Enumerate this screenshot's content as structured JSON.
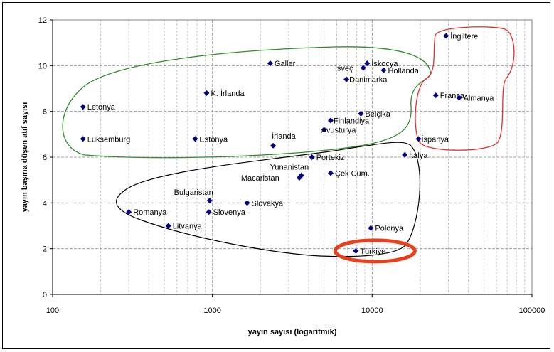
{
  "chart_data": {
    "type": "scatter",
    "title": "",
    "xlabel": "yayın sayısı (logaritmik)",
    "ylabel": "yayın başına düşen atıf sayısı",
    "x_scale": "log",
    "xlim": [
      100,
      100000
    ],
    "ylim": [
      0,
      12
    ],
    "x_ticks": [
      "100",
      "1000",
      "10000",
      "100000"
    ],
    "y_ticks": [
      "0",
      "2",
      "4",
      "6",
      "8",
      "10",
      "12"
    ],
    "grid": "vertical minor and major gridlines, horizontal major gridlines",
    "marker_color": "#000080",
    "points": [
      {
        "label": "İngiltere",
        "x": 29000,
        "y": 11.3
      },
      {
        "label": "İskoçya",
        "x": 9300,
        "y": 10.1
      },
      {
        "label": "İsveç",
        "x": 8800,
        "y": 9.9
      },
      {
        "label": "Hollanda",
        "x": 11800,
        "y": 9.8
      },
      {
        "label": "Danimarka",
        "x": 6900,
        "y": 9.4
      },
      {
        "label": "Galler",
        "x": 2300,
        "y": 10.1
      },
      {
        "label": "K. İrlanda",
        "x": 920,
        "y": 8.8
      },
      {
        "label": "Fransa",
        "x": 25000,
        "y": 8.7
      },
      {
        "label": "Almanya",
        "x": 35000,
        "y": 8.6
      },
      {
        "label": "Letonya",
        "x": 155,
        "y": 8.2
      },
      {
        "label": "Belçika",
        "x": 8500,
        "y": 7.9
      },
      {
        "label": "Finlandiya",
        "x": 5500,
        "y": 7.6
      },
      {
        "label": "Avusturya",
        "x": 5000,
        "y": 7.2
      },
      {
        "label": "Lüksemburg",
        "x": 155,
        "y": 6.8
      },
      {
        "label": "Estonya",
        "x": 780,
        "y": 6.8
      },
      {
        "label": "İspanya",
        "x": 19500,
        "y": 6.8
      },
      {
        "label": "İrlanda",
        "x": 2400,
        "y": 6.5
      },
      {
        "label": "İtalya",
        "x": 16000,
        "y": 6.1
      },
      {
        "label": "Portekiz",
        "x": 4200,
        "y": 6.0
      },
      {
        "label": "Yunanistan",
        "x": 3600,
        "y": 5.2
      },
      {
        "label": "Macaristan",
        "x": 3500,
        "y": 5.1
      },
      {
        "label": "Çek Cum.",
        "x": 5500,
        "y": 5.3
      },
      {
        "label": "Bulgaristan",
        "x": 960,
        "y": 4.1
      },
      {
        "label": "Slovakya",
        "x": 1650,
        "y": 4.0
      },
      {
        "label": "Romanya",
        "x": 300,
        "y": 3.6
      },
      {
        "label": "Slovenya",
        "x": 950,
        "y": 3.6
      },
      {
        "label": "Litvanya",
        "x": 530,
        "y": 3.0
      },
      {
        "label": "Polonya",
        "x": 9800,
        "y": 2.9
      },
      {
        "label": "Türkiye",
        "x": 7900,
        "y": 1.9
      }
    ]
  }
}
